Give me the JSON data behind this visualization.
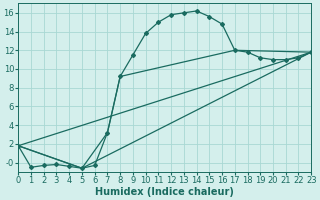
{
  "xlabel": "Humidex (Indice chaleur)",
  "background_color": "#d4efec",
  "grid_color": "#a8d8d4",
  "line_color": "#1a6b60",
  "marker_color": "#1a6b60",
  "curve1_x": [
    0,
    1,
    2,
    3,
    4,
    5,
    6,
    7,
    8,
    9,
    10,
    11,
    12,
    13,
    14,
    15,
    16,
    17,
    18,
    19,
    20,
    21,
    22,
    23
  ],
  "curve1_y": [
    1.8,
    -0.5,
    -0.3,
    -0.2,
    -0.4,
    -0.6,
    -0.3,
    3.2,
    9.2,
    11.5,
    13.8,
    15.0,
    15.8,
    16.0,
    16.2,
    15.6,
    14.8,
    12.0,
    11.8,
    11.2,
    11.0,
    11.0,
    11.2,
    11.8
  ],
  "curve2_x": [
    0,
    5,
    7,
    8,
    17,
    23
  ],
  "curve2_y": [
    1.8,
    -0.6,
    3.2,
    9.2,
    12.0,
    11.8
  ],
  "curve3_x": [
    0,
    5,
    23
  ],
  "curve3_y": [
    1.8,
    -0.6,
    11.8
  ],
  "curve4_x": [
    0,
    23
  ],
  "curve4_y": [
    1.8,
    11.8
  ],
  "xlim": [
    0,
    23
  ],
  "ylim": [
    -1.0,
    17.0
  ],
  "xticks": [
    0,
    1,
    2,
    3,
    4,
    5,
    6,
    7,
    8,
    9,
    10,
    11,
    12,
    13,
    14,
    15,
    16,
    17,
    18,
    19,
    20,
    21,
    22,
    23
  ],
  "yticks": [
    0,
    2,
    4,
    6,
    8,
    10,
    12,
    14,
    16
  ],
  "xlabel_fontsize": 7,
  "tick_fontsize": 6,
  "marker_size": 2.0,
  "line_width": 0.9
}
